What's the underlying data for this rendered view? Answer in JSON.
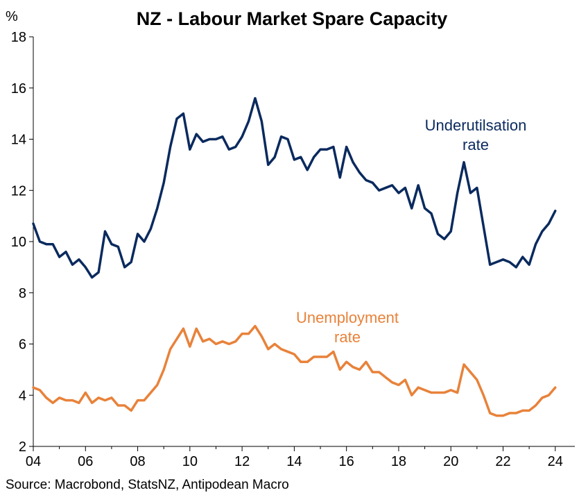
{
  "chart_data": {
    "type": "line",
    "title": "NZ - Labour Market Spare Capacity",
    "ylabel": "%",
    "xlabel": "",
    "source": "Source: Macrobond, StatsNZ, Antipodean Macro",
    "ylim": [
      2,
      18
    ],
    "yticks": [
      "2",
      "4",
      "6",
      "8",
      "10",
      "12",
      "14",
      "16",
      "18"
    ],
    "xlim": [
      2004.0,
      2024.75
    ],
    "xticks": [
      {
        "value": 2004,
        "label": "04"
      },
      {
        "value": 2006,
        "label": "06"
      },
      {
        "value": 2008,
        "label": "08"
      },
      {
        "value": 2010,
        "label": "10"
      },
      {
        "value": 2012,
        "label": "12"
      },
      {
        "value": 2014,
        "label": "14"
      },
      {
        "value": 2016,
        "label": "16"
      },
      {
        "value": 2018,
        "label": "18"
      },
      {
        "value": 2020,
        "label": "20"
      },
      {
        "value": 2022,
        "label": "22"
      },
      {
        "value": 2024,
        "label": "24"
      }
    ],
    "start": 2004.0,
    "step": 0.25,
    "series": [
      {
        "name": "Underutilsation\nrate",
        "color": "#0a2a5e",
        "label_lines": [
          "Underutilsation",
          "rate"
        ],
        "values": [
          10.7,
          10.0,
          9.9,
          9.9,
          9.4,
          9.6,
          9.1,
          9.3,
          9.0,
          8.6,
          8.8,
          10.4,
          9.9,
          9.8,
          9.0,
          9.2,
          10.3,
          10.0,
          10.5,
          11.3,
          12.3,
          13.7,
          14.8,
          15.0,
          13.6,
          14.2,
          13.9,
          14.0,
          14.0,
          14.1,
          13.6,
          13.7,
          14.1,
          14.7,
          15.6,
          14.7,
          13.0,
          13.3,
          14.1,
          14.0,
          13.2,
          13.3,
          12.8,
          13.3,
          13.6,
          13.6,
          13.7,
          12.5,
          13.7,
          13.1,
          12.7,
          12.4,
          12.3,
          12.0,
          12.1,
          12.2,
          11.9,
          12.1,
          11.3,
          12.2,
          11.3,
          11.1,
          10.3,
          10.1,
          10.4,
          11.9,
          13.1,
          11.9,
          12.1,
          10.6,
          9.1,
          9.2,
          9.3,
          9.2,
          9.0,
          9.4,
          9.1,
          9.9,
          10.4,
          10.7,
          11.2
        ]
      },
      {
        "name": "Unemployment\nrate",
        "color": "#e8823a",
        "label_lines": [
          "Unemployment",
          "rate"
        ],
        "values": [
          4.3,
          4.2,
          3.9,
          3.7,
          3.9,
          3.8,
          3.8,
          3.7,
          4.1,
          3.7,
          3.9,
          3.8,
          3.9,
          3.6,
          3.6,
          3.4,
          3.8,
          3.8,
          4.1,
          4.4,
          5.0,
          5.8,
          6.2,
          6.6,
          5.9,
          6.6,
          6.1,
          6.2,
          6.0,
          6.1,
          6.0,
          6.1,
          6.4,
          6.4,
          6.7,
          6.3,
          5.8,
          6.0,
          5.8,
          5.7,
          5.6,
          5.3,
          5.3,
          5.5,
          5.5,
          5.5,
          5.7,
          5.0,
          5.3,
          5.1,
          5.0,
          5.3,
          4.9,
          4.9,
          4.7,
          4.5,
          4.4,
          4.6,
          4.0,
          4.3,
          4.2,
          4.1,
          4.1,
          4.1,
          4.2,
          4.1,
          5.2,
          4.9,
          4.6,
          4.0,
          3.3,
          3.2,
          3.2,
          3.3,
          3.3,
          3.4,
          3.4,
          3.6,
          3.9,
          4.0,
          4.3
        ]
      }
    ]
  }
}
